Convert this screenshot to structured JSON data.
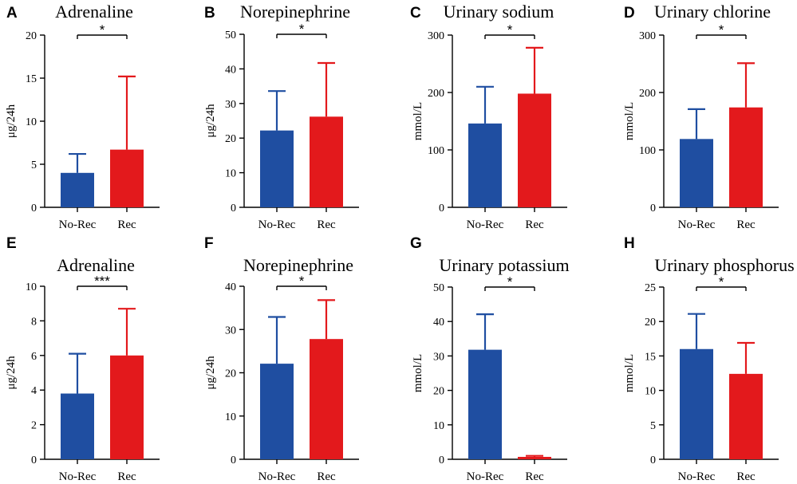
{
  "colors": {
    "no_rec": "#1f4ea1",
    "rec": "#e3191c",
    "axis": "#000000"
  },
  "chart_data": [
    {
      "panel": "A",
      "type": "bar",
      "title": "Adrenaline",
      "ylabel": "μg/24h",
      "categories": [
        "No-Rec",
        "Rec"
      ],
      "values": [
        4.0,
        6.7
      ],
      "errors": [
        2.2,
        8.5
      ],
      "ylim": [
        0,
        20
      ],
      "yticks": [
        0,
        5,
        10,
        15,
        20
      ],
      "significance": "*"
    },
    {
      "panel": "B",
      "type": "bar",
      "title": "Norepinephrine",
      "ylabel": "μg/24h",
      "categories": [
        "No-Rec",
        "Rec"
      ],
      "values": [
        22.2,
        26.2
      ],
      "errors": [
        11.4,
        15.5
      ],
      "ylim": [
        0,
        50
      ],
      "yticks": [
        0,
        10,
        20,
        30,
        40,
        50
      ],
      "significance": "*"
    },
    {
      "panel": "C",
      "type": "bar",
      "title": "Urinary sodium",
      "ylabel": "mmol/L",
      "categories": [
        "No-Rec",
        "Rec"
      ],
      "values": [
        146,
        198
      ],
      "errors": [
        64,
        80
      ],
      "ylim": [
        0,
        300
      ],
      "yticks": [
        0,
        100,
        200,
        300
      ],
      "significance": "*"
    },
    {
      "panel": "D",
      "type": "bar",
      "title": "Urinary chlorine",
      "ylabel": "mmol/L",
      "categories": [
        "No-Rec",
        "Rec"
      ],
      "values": [
        119,
        174
      ],
      "errors": [
        52,
        77
      ],
      "ylim": [
        0,
        300
      ],
      "yticks": [
        0,
        100,
        200,
        300
      ],
      "significance": "*"
    },
    {
      "panel": "E",
      "type": "bar",
      "title": "Adrenaline",
      "ylabel": "μg/24h",
      "categories": [
        "No-Rec",
        "Rec"
      ],
      "values": [
        3.8,
        6.0
      ],
      "errors": [
        2.3,
        2.7
      ],
      "ylim": [
        0,
        10
      ],
      "yticks": [
        0,
        2,
        4,
        6,
        8,
        10
      ],
      "significance": "***"
    },
    {
      "panel": "F",
      "type": "bar",
      "title": "Norepinephrine",
      "ylabel": "μg/24h",
      "categories": [
        "No-Rec",
        "Rec"
      ],
      "values": [
        22.1,
        27.8
      ],
      "errors": [
        10.8,
        9.0
      ],
      "ylim": [
        0,
        40
      ],
      "yticks": [
        0,
        10,
        20,
        30,
        40
      ],
      "significance": "*"
    },
    {
      "panel": "G",
      "type": "bar",
      "title": "Urinary potassium",
      "ylabel": "mmol/L",
      "categories": [
        "No-Rec",
        "Rec"
      ],
      "values": [
        31.8,
        0.7
      ],
      "errors": [
        10.3,
        0.3
      ],
      "ylim": [
        0,
        50
      ],
      "yticks": [
        0,
        10,
        20,
        30,
        40,
        50
      ],
      "significance": "*"
    },
    {
      "panel": "H",
      "type": "bar",
      "title": "Urinary phosphorus",
      "ylabel": "mmol/L",
      "categories": [
        "No-Rec",
        "Rec"
      ],
      "values": [
        16.0,
        12.4
      ],
      "errors": [
        5.1,
        4.5
      ],
      "ylim": [
        0,
        25
      ],
      "yticks": [
        0,
        5,
        10,
        15,
        20,
        25
      ],
      "significance": "*"
    }
  ]
}
